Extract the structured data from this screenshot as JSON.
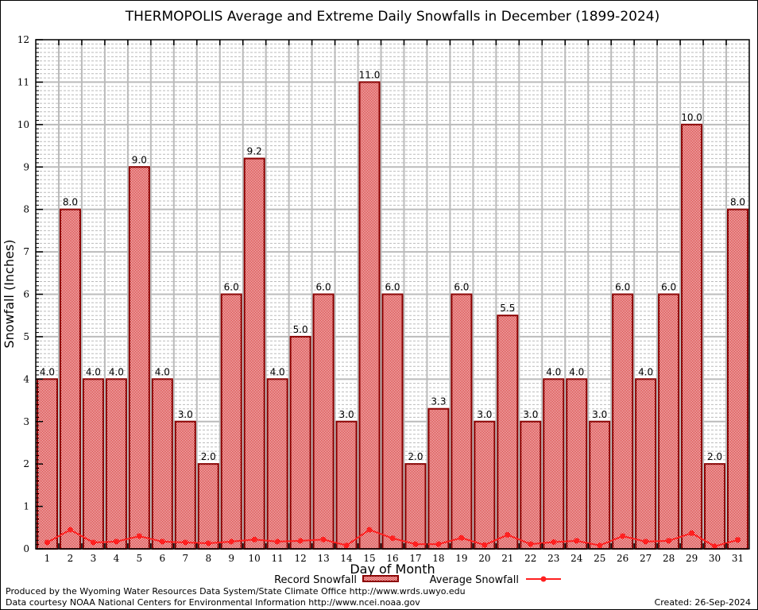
{
  "chart_data": {
    "type": "bar",
    "title": "THERMOPOLIS Average and Extreme Daily Snowfalls in December (1899-2024)",
    "xlabel": "Day of Month",
    "ylabel": "Snowfall (Inches)",
    "ylim": [
      0,
      12
    ],
    "yticks": [
      "0",
      "1",
      "2",
      "3",
      "4",
      "5",
      "6",
      "7",
      "8",
      "9",
      "10",
      "11",
      "12"
    ],
    "grid": true,
    "legend_placement": "bottom",
    "categories": [
      "1",
      "2",
      "3",
      "4",
      "5",
      "6",
      "7",
      "8",
      "9",
      "10",
      "11",
      "12",
      "13",
      "14",
      "15",
      "16",
      "17",
      "18",
      "19",
      "20",
      "21",
      "22",
      "23",
      "24",
      "25",
      "26",
      "27",
      "28",
      "29",
      "30",
      "31"
    ],
    "series": [
      {
        "name": "Record Snowfall",
        "type": "bar",
        "color": "#cc0000",
        "border_color": "#8b0000",
        "values": [
          4.0,
          8.0,
          4.0,
          4.0,
          9.0,
          4.0,
          3.0,
          2.0,
          6.0,
          9.2,
          4.0,
          5.0,
          6.0,
          3.0,
          11.0,
          6.0,
          2.0,
          3.3,
          6.0,
          3.0,
          5.5,
          3.0,
          4.0,
          4.0,
          3.0,
          6.0,
          4.0,
          6.0,
          10.0,
          2.0,
          8.0
        ],
        "labels": [
          "4.0",
          "8.0",
          "4.0",
          "4.0",
          "9.0",
          "4.0",
          "3.0",
          "2.0",
          "6.0",
          "9.2",
          "4.0",
          "5.0",
          "6.0",
          "3.0",
          "11.0",
          "6.0",
          "2.0",
          "3.3",
          "6.0",
          "3.0",
          "5.5",
          "3.0",
          "4.0",
          "4.0",
          "3.0",
          "6.0",
          "4.0",
          "6.0",
          "10.0",
          "2.0",
          "8.0"
        ]
      },
      {
        "name": "Average Snowfall",
        "type": "line",
        "color": "#ff2020",
        "values": [
          0.15,
          0.45,
          0.15,
          0.17,
          0.3,
          0.17,
          0.15,
          0.13,
          0.17,
          0.22,
          0.17,
          0.19,
          0.22,
          0.08,
          0.45,
          0.25,
          0.11,
          0.11,
          0.26,
          0.09,
          0.33,
          0.11,
          0.16,
          0.19,
          0.08,
          0.3,
          0.17,
          0.19,
          0.37,
          0.06,
          0.21
        ]
      }
    ]
  },
  "footer": {
    "line1": "Produced by the Wyoming Water Resources Data System/State Climate Office http://www.wrds.uwyo.edu",
    "line2": "Data courtesy NOAA National Centers for Environmental Information http://www.ncei.noaa.gov",
    "created": "Created: 26-Sep-2024"
  }
}
